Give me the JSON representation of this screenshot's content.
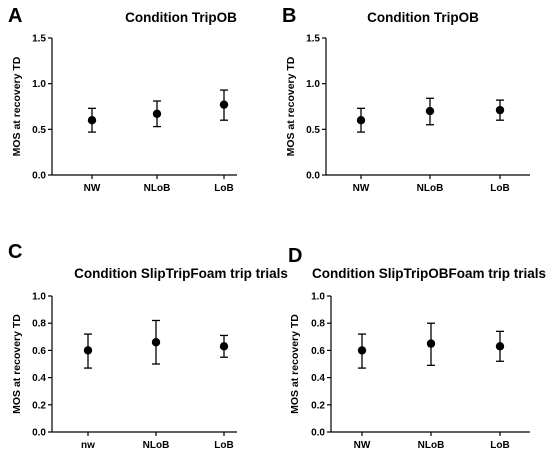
{
  "chart_data": [
    {
      "type": "scatter",
      "panel_label": "A",
      "title": "Condition TripOB",
      "ylabel": "MOS at recovery TD",
      "xlabel": "",
      "categories": [
        "NW",
        "NLoB",
        "LoB"
      ],
      "values": [
        0.6,
        0.67,
        0.77
      ],
      "error_low": [
        0.47,
        0.53,
        0.6
      ],
      "error_high": [
        0.73,
        0.81,
        0.93
      ],
      "ylim": [
        0,
        1.5
      ],
      "yticks": [
        "0.0",
        "0.5",
        "1.0",
        "1.5"
      ],
      "ytick_values": [
        0,
        0.5,
        1.0,
        1.5
      ],
      "grid": false
    },
    {
      "type": "scatter",
      "panel_label": "B",
      "title": "Condition TripOB",
      "ylabel": "MOS at recovery TD",
      "xlabel": "",
      "categories": [
        "NW",
        "NLoB",
        "LoB"
      ],
      "values": [
        0.6,
        0.7,
        0.71
      ],
      "error_low": [
        0.47,
        0.55,
        0.6
      ],
      "error_high": [
        0.73,
        0.84,
        0.82
      ],
      "ylim": [
        0,
        1.5
      ],
      "yticks": [
        "0.0",
        "0.5",
        "1.0",
        "1.5"
      ],
      "ytick_values": [
        0,
        0.5,
        1.0,
        1.5
      ],
      "grid": false
    },
    {
      "type": "scatter",
      "panel_label": "C",
      "title": "Condition SlipTripFoam trip trials",
      "ylabel": "MOS at recovery TD",
      "xlabel": "",
      "categories": [
        "nw",
        "NLoB",
        "LoB"
      ],
      "values": [
        0.6,
        0.66,
        0.63
      ],
      "error_low": [
        0.47,
        0.5,
        0.55
      ],
      "error_high": [
        0.72,
        0.82,
        0.71
      ],
      "ylim": [
        0,
        1.0
      ],
      "yticks": [
        "0.0",
        "0.2",
        "0.4",
        "0.6",
        "0.8",
        "1.0"
      ],
      "ytick_values": [
        0,
        0.2,
        0.4,
        0.6,
        0.8,
        1.0
      ],
      "grid": false
    },
    {
      "type": "scatter",
      "panel_label": "D",
      "title": "Condition SlipTripOBFoam trip trials",
      "ylabel": "MOS at recovery TD",
      "xlabel": "",
      "categories": [
        "NW",
        "NLoB",
        "LoB"
      ],
      "values": [
        0.6,
        0.65,
        0.63
      ],
      "error_low": [
        0.47,
        0.49,
        0.52
      ],
      "error_high": [
        0.72,
        0.8,
        0.74
      ],
      "ylim": [
        0,
        1.0
      ],
      "yticks": [
        "0.0",
        "0.2",
        "0.4",
        "0.6",
        "0.8",
        "1.0"
      ],
      "ytick_values": [
        0,
        0.2,
        0.4,
        0.6,
        0.8,
        1.0
      ],
      "grid": false
    }
  ]
}
